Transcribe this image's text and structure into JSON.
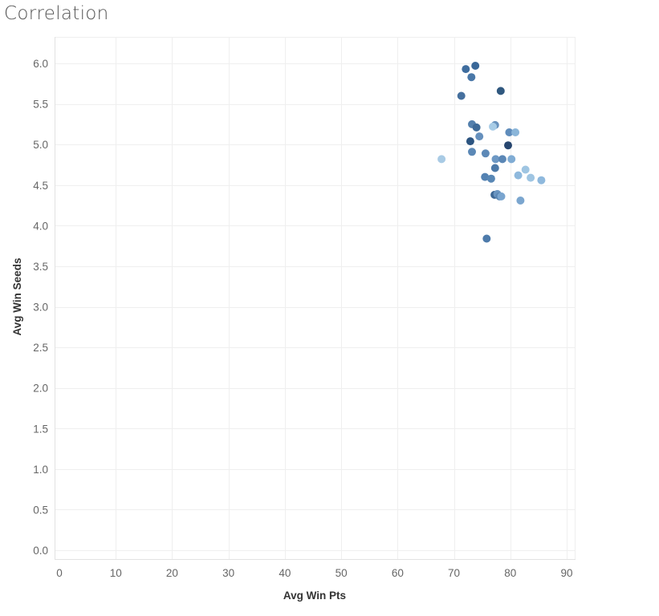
{
  "chart_data": {
    "type": "scatter",
    "title": "Correlation",
    "xlabel": "Avg Win Pts",
    "ylabel": "Avg Win Seeds",
    "xlim": [
      0,
      90
    ],
    "ylim": [
      0,
      6.0
    ],
    "x_ticks": [
      "0",
      "10",
      "20",
      "30",
      "40",
      "50",
      "60",
      "70",
      "80",
      "90"
    ],
    "y_ticks": [
      "0.0",
      "0.5",
      "1.0",
      "1.5",
      "2.0",
      "2.5",
      "3.0",
      "3.5",
      "4.0",
      "4.5",
      "5.0",
      "5.5",
      "6.0"
    ],
    "grid": true,
    "points": [
      {
        "x": 72.1,
        "y": 5.93,
        "color": "#3f6d9e"
      },
      {
        "x": 73.8,
        "y": 5.97,
        "color": "#3a6898"
      },
      {
        "x": 73.1,
        "y": 5.83,
        "color": "#4a78a8"
      },
      {
        "x": 78.3,
        "y": 5.66,
        "color": "#30587f"
      },
      {
        "x": 71.3,
        "y": 5.6,
        "color": "#46709e"
      },
      {
        "x": 73.2,
        "y": 5.25,
        "color": "#5480ad"
      },
      {
        "x": 74.0,
        "y": 5.21,
        "color": "#3e6a98"
      },
      {
        "x": 77.3,
        "y": 5.24,
        "color": "#6892bd"
      },
      {
        "x": 76.9,
        "y": 5.22,
        "color": "#a8cce6"
      },
      {
        "x": 79.8,
        "y": 5.15,
        "color": "#5f8cbb"
      },
      {
        "x": 80.9,
        "y": 5.15,
        "color": "#8ab5d9"
      },
      {
        "x": 74.5,
        "y": 5.1,
        "color": "#6690bd"
      },
      {
        "x": 72.9,
        "y": 5.04,
        "color": "#2c5480"
      },
      {
        "x": 79.6,
        "y": 4.99,
        "color": "#27466f"
      },
      {
        "x": 73.2,
        "y": 4.91,
        "color": "#5b88b6"
      },
      {
        "x": 75.6,
        "y": 4.89,
        "color": "#5d89b7"
      },
      {
        "x": 67.8,
        "y": 4.82,
        "color": "#a9cbe5"
      },
      {
        "x": 77.4,
        "y": 4.82,
        "color": "#6d98c4"
      },
      {
        "x": 78.6,
        "y": 4.82,
        "color": "#5b87b6"
      },
      {
        "x": 80.2,
        "y": 4.82,
        "color": "#80acd4"
      },
      {
        "x": 77.3,
        "y": 4.71,
        "color": "#4c79a8"
      },
      {
        "x": 82.7,
        "y": 4.69,
        "color": "#9fc5e2"
      },
      {
        "x": 81.4,
        "y": 4.62,
        "color": "#8fb9dd"
      },
      {
        "x": 83.6,
        "y": 4.59,
        "color": "#9fc5e2"
      },
      {
        "x": 85.5,
        "y": 4.56,
        "color": "#8fb9dd"
      },
      {
        "x": 75.5,
        "y": 4.6,
        "color": "#5482b2"
      },
      {
        "x": 76.6,
        "y": 4.58,
        "color": "#5887b5"
      },
      {
        "x": 77.2,
        "y": 4.38,
        "color": "#3d6896"
      },
      {
        "x": 77.7,
        "y": 4.39,
        "color": "#6a95c1"
      },
      {
        "x": 78.1,
        "y": 4.36,
        "color": "#5886b4"
      },
      {
        "x": 78.4,
        "y": 4.36,
        "color": "#7aa5cf"
      },
      {
        "x": 81.8,
        "y": 4.31,
        "color": "#7ba6cf"
      },
      {
        "x": 75.8,
        "y": 3.84,
        "color": "#4e7bab"
      }
    ]
  },
  "colors": {
    "grid": "#efefef",
    "axis": "#e2e2e2",
    "tick_text": "#666666",
    "title_text": "#555555"
  }
}
